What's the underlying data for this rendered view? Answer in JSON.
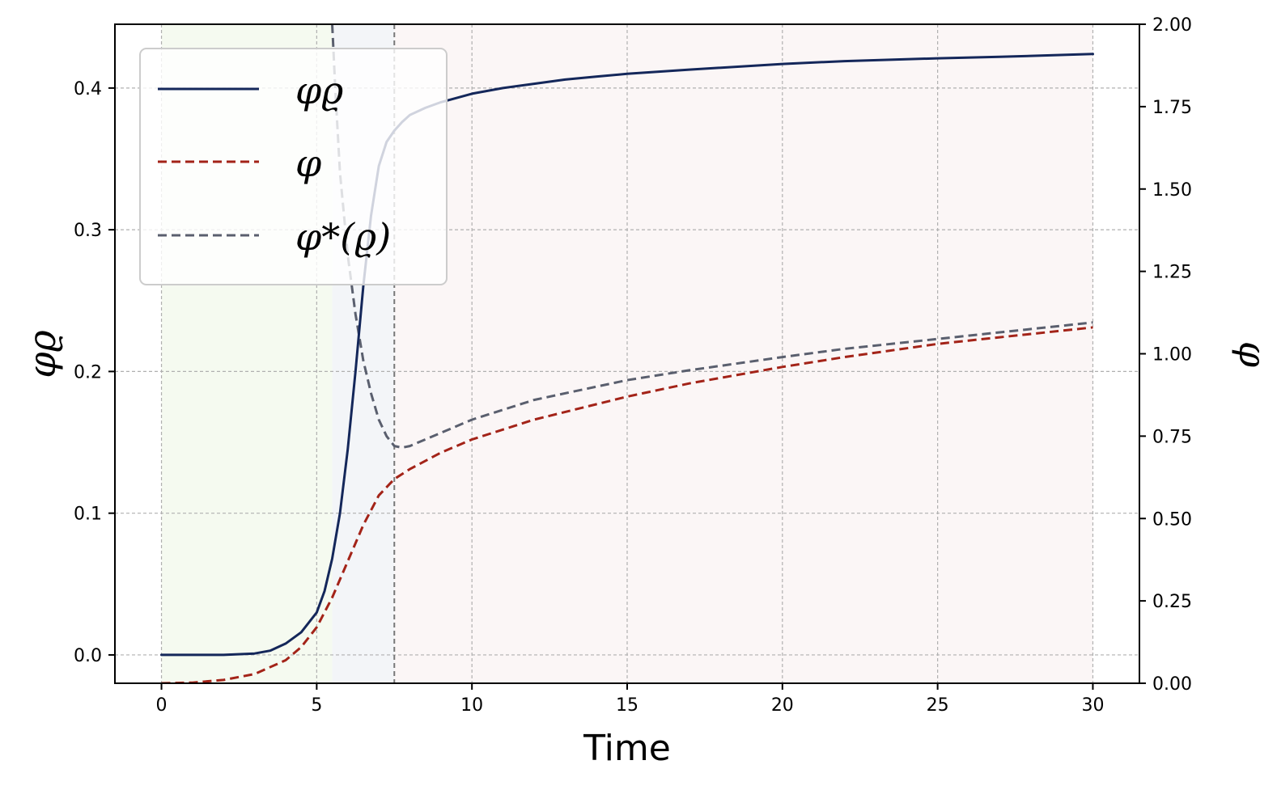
{
  "chart_data": {
    "type": "line",
    "xlabel": "Time",
    "ylabel_left": "φϱ",
    "ylabel_right": "φ",
    "xlim": [
      -1.5,
      31.5
    ],
    "ylim_left": [
      -0.02,
      0.445
    ],
    "ylim_right": [
      0.0,
      2.0
    ],
    "x_ticks": [
      "0",
      "5",
      "10",
      "15",
      "20",
      "25",
      "30"
    ],
    "y_left_ticks": [
      "0.0",
      "0.1",
      "0.2",
      "0.3",
      "0.4"
    ],
    "y_right_ticks": [
      "0.00",
      "0.25",
      "0.50",
      "0.75",
      "1.00",
      "1.25",
      "1.50",
      "1.75",
      "2.00"
    ],
    "grid": true,
    "legend_position": "upper-left",
    "vertical_marker_x": 7.5,
    "shaded_regions": [
      {
        "x0": 0,
        "x1": 5.5,
        "color": "#f5faf0"
      },
      {
        "x0": 5.5,
        "x1": 7.5,
        "color": "#f3f5f8"
      },
      {
        "x0": 7.5,
        "x1": 30,
        "color": "#fbf6f6"
      }
    ],
    "series": [
      {
        "name": "φϱ",
        "axis": "left",
        "style": "solid",
        "color": "#14275a",
        "x": [
          0,
          1,
          2,
          3,
          3.5,
          4,
          4.5,
          5,
          5.25,
          5.5,
          5.75,
          6,
          6.25,
          6.5,
          6.75,
          7,
          7.25,
          7.5,
          7.75,
          8,
          8.5,
          9,
          10,
          11,
          12,
          13,
          14,
          15,
          17,
          20,
          22,
          25,
          27,
          30
        ],
        "y": [
          0.0,
          0.0,
          0.0,
          0.001,
          0.003,
          0.008,
          0.016,
          0.03,
          0.045,
          0.068,
          0.1,
          0.145,
          0.2,
          0.26,
          0.31,
          0.345,
          0.362,
          0.37,
          0.376,
          0.381,
          0.386,
          0.39,
          0.396,
          0.4,
          0.403,
          0.406,
          0.408,
          0.41,
          0.413,
          0.417,
          0.419,
          0.421,
          0.422,
          0.424
        ]
      },
      {
        "name": "φ",
        "axis": "right",
        "style": "dashed",
        "color": "#a32318",
        "x": [
          0,
          1,
          2,
          3,
          4,
          4.5,
          5,
          5.5,
          6,
          6.5,
          7,
          7.5,
          8,
          9,
          10,
          12,
          15,
          17,
          20,
          22,
          25,
          27,
          30
        ],
        "y": [
          0.0,
          0.002,
          0.01,
          0.028,
          0.07,
          0.11,
          0.17,
          0.26,
          0.37,
          0.48,
          0.57,
          0.62,
          0.65,
          0.7,
          0.74,
          0.8,
          0.87,
          0.91,
          0.96,
          0.99,
          1.03,
          1.05,
          1.08
        ]
      },
      {
        "name": "φ*(ϱ)",
        "axis": "right",
        "style": "dashed",
        "color": "#5a5f6e",
        "x": [
          5.5,
          5.6,
          5.75,
          6.0,
          6.25,
          6.5,
          6.75,
          7.0,
          7.25,
          7.5,
          7.75,
          8,
          9,
          10,
          12,
          15,
          17,
          20,
          22,
          25,
          27,
          30
        ],
        "y": [
          2.0,
          1.8,
          1.55,
          1.3,
          1.12,
          0.98,
          0.88,
          0.8,
          0.75,
          0.72,
          0.715,
          0.72,
          0.76,
          0.8,
          0.86,
          0.92,
          0.95,
          0.99,
          1.015,
          1.045,
          1.065,
          1.095
        ]
      }
    ],
    "legend": [
      {
        "label": "φϱ",
        "series": 0
      },
      {
        "label": "φ",
        "series": 1
      },
      {
        "label": "φ*(ϱ)",
        "series": 2
      }
    ]
  }
}
